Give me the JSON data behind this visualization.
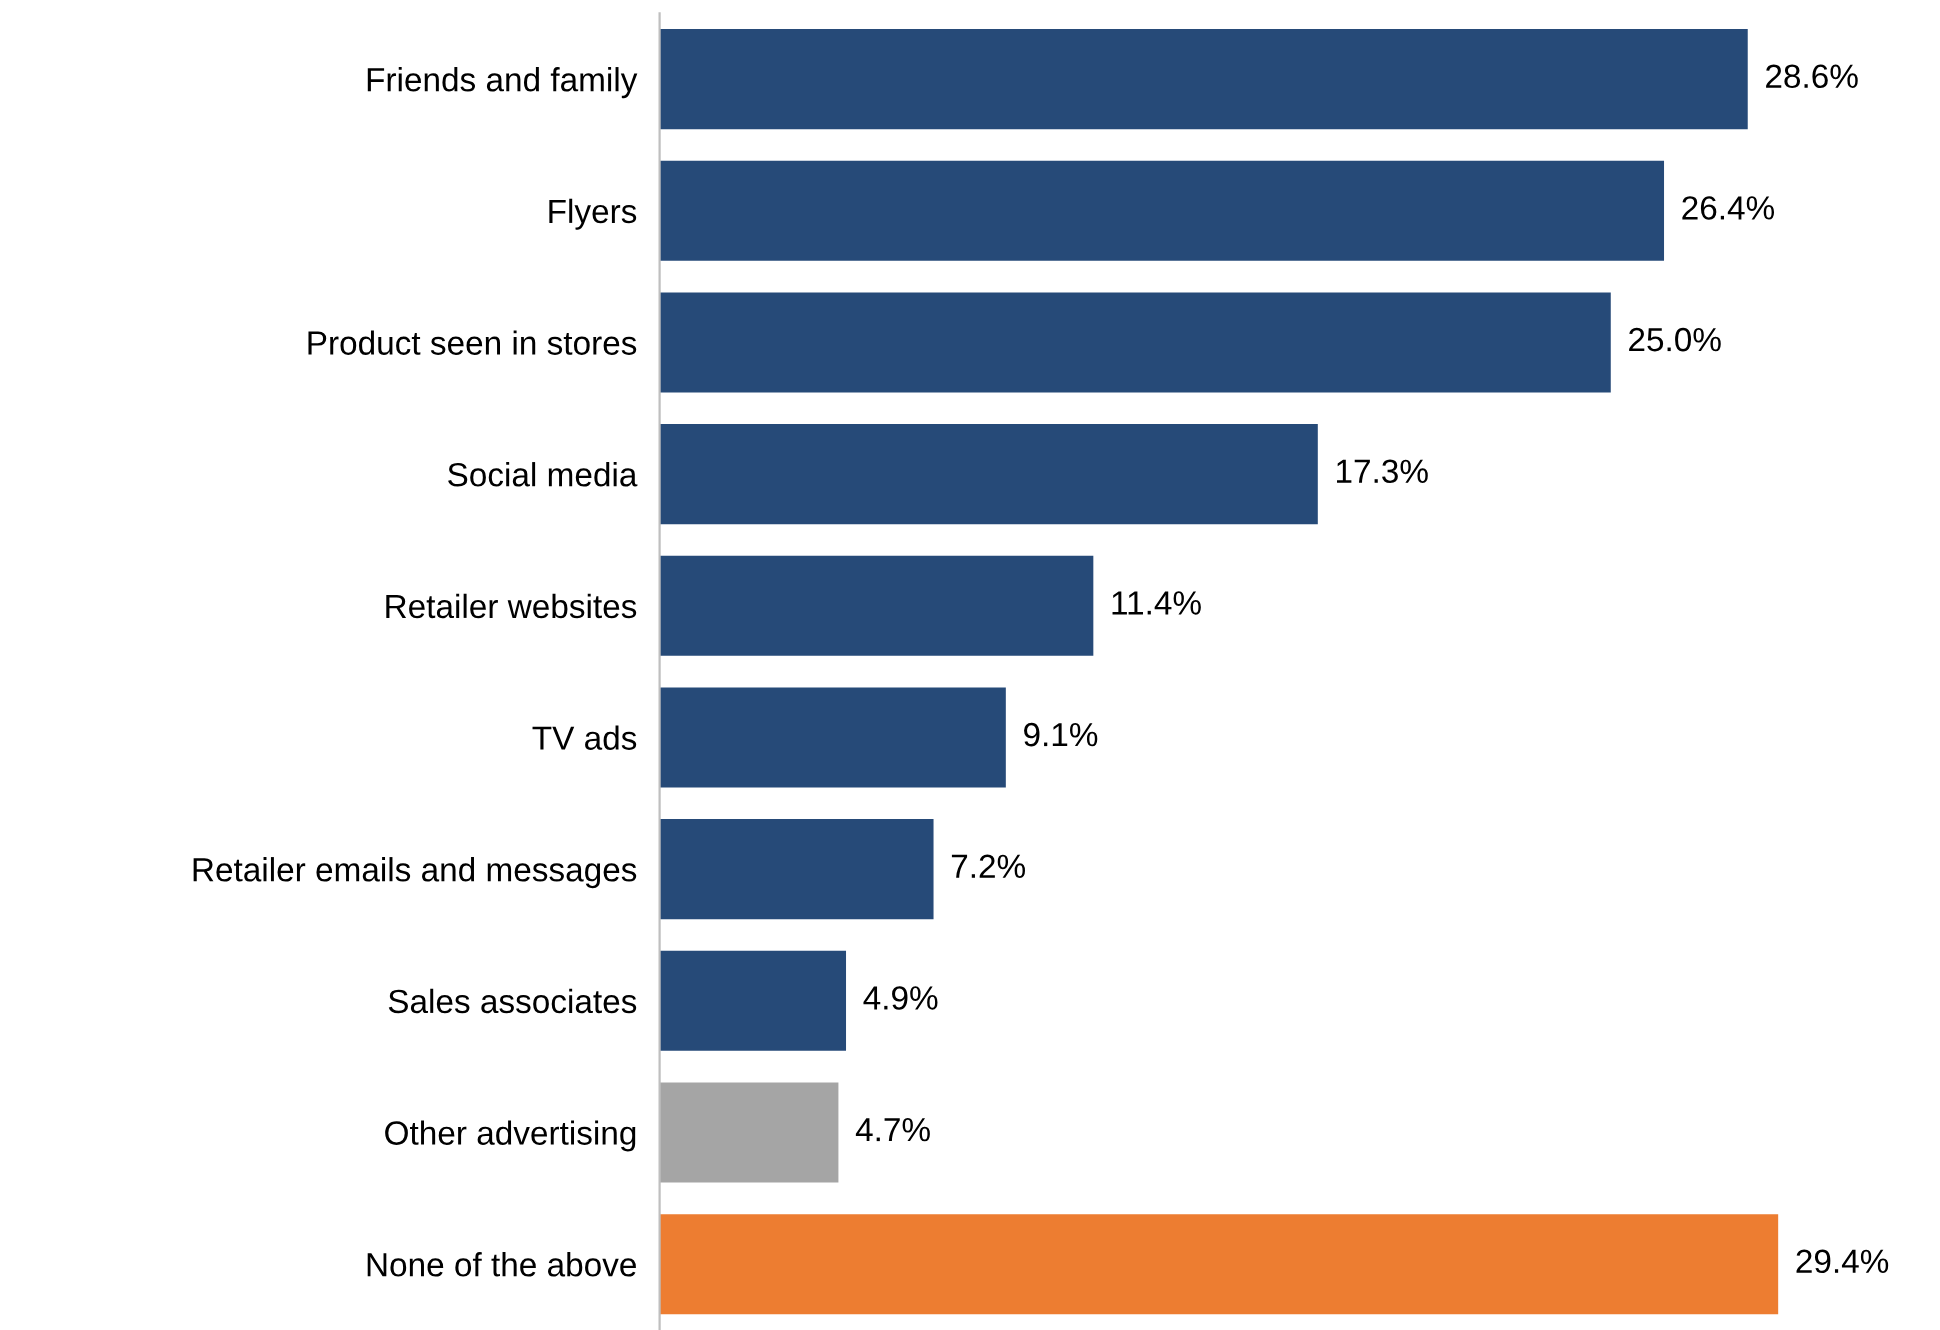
{
  "chart_data": {
    "type": "bar",
    "orientation": "horizontal",
    "categories": [
      "Friends and family",
      "Flyers",
      "Product seen in stores",
      "Social media",
      "Retailer websites",
      "TV ads",
      "Retailer emails and messages",
      "Sales associates",
      "Other advertising",
      "None of the above"
    ],
    "values": [
      28.6,
      26.4,
      25.0,
      17.3,
      11.4,
      9.1,
      7.2,
      4.9,
      4.7,
      29.4
    ],
    "colors": [
      "#264a78",
      "#264a78",
      "#264a78",
      "#264a78",
      "#264a78",
      "#264a78",
      "#264a78",
      "#264a78",
      "#a5a5a5",
      "#ed7d31"
    ],
    "value_labels": [
      "28.6%",
      "26.4%",
      "25.0%",
      "17.3%",
      "11.4%",
      "9.1%",
      "7.2%",
      "4.9%",
      "4.7%",
      "29.4%"
    ],
    "grid": false,
    "tick_labels": "y"
  }
}
